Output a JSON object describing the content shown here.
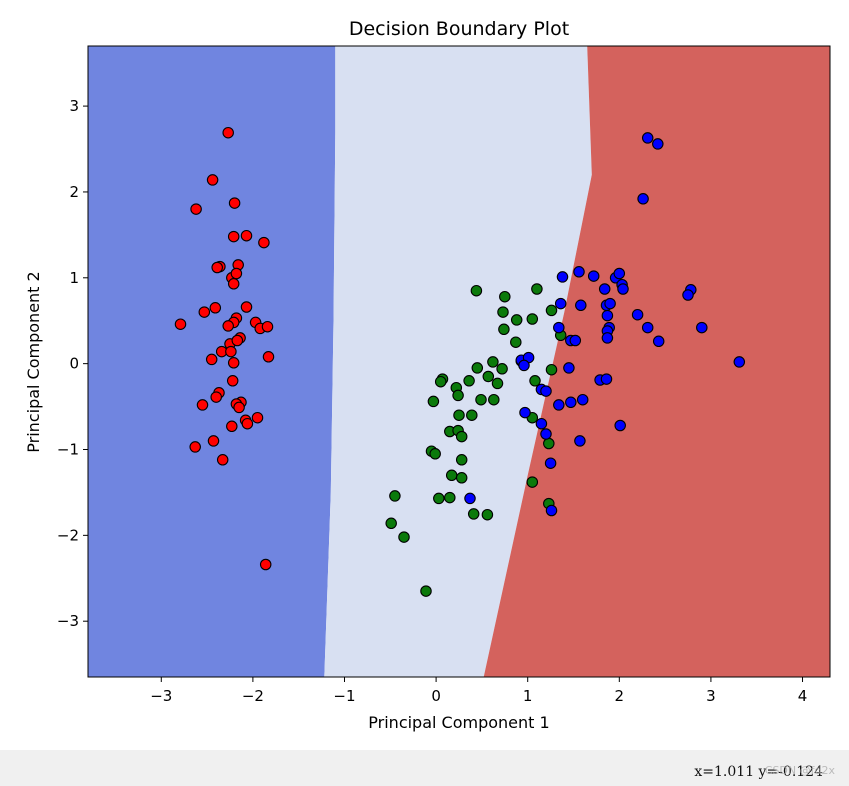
{
  "chart_data": {
    "type": "scatter",
    "title": "Decision Boundary Plot",
    "xlabel": "Principal Component 1",
    "ylabel": "Principal Component 2",
    "xlim": [
      -3.8,
      4.3
    ],
    "ylim": [
      -3.65,
      3.7
    ],
    "xticks": [
      -3,
      -2,
      -1,
      0,
      1,
      2,
      3,
      4
    ],
    "yticks": [
      -3,
      -2,
      -1,
      0,
      1,
      2,
      3
    ],
    "regions": [
      {
        "name": "class-0-region",
        "color": "#7085e0"
      },
      {
        "name": "class-1-region",
        "color": "#d8e0f2"
      },
      {
        "name": "class-2-region",
        "color": "#d4625d"
      }
    ],
    "boundaries": [
      {
        "name": "boundary-0-1",
        "points": [
          [
            -1.22,
            -3.65
          ],
          [
            -1.15,
            -1.5
          ],
          [
            -1.12,
            0.5
          ],
          [
            -1.1,
            2.7
          ],
          [
            -1.1,
            3.7
          ]
        ]
      },
      {
        "name": "boundary-1-2",
        "points": [
          [
            0.52,
            -3.65
          ],
          [
            1.0,
            -1.3
          ],
          [
            1.4,
            0.6
          ],
          [
            1.7,
            2.2
          ],
          [
            1.65,
            3.7
          ]
        ]
      }
    ],
    "series": [
      {
        "name": "class-0",
        "color": "#ff0000",
        "points": [
          [
            -2.27,
            2.69
          ],
          [
            -2.44,
            2.14
          ],
          [
            -2.62,
            1.8
          ],
          [
            -2.2,
            1.87
          ],
          [
            -2.21,
            1.48
          ],
          [
            -2.07,
            1.49
          ],
          [
            -1.88,
            1.41
          ],
          [
            -2.16,
            1.15
          ],
          [
            -2.36,
            1.13
          ],
          [
            -2.39,
            1.12
          ],
          [
            -2.23,
            1.0
          ],
          [
            -2.18,
            1.05
          ],
          [
            -2.21,
            0.93
          ],
          [
            -2.07,
            0.66
          ],
          [
            -2.41,
            0.65
          ],
          [
            -2.53,
            0.6
          ],
          [
            -2.18,
            0.53
          ],
          [
            -2.79,
            0.46
          ],
          [
            -1.97,
            0.48
          ],
          [
            -1.92,
            0.41
          ],
          [
            -1.84,
            0.43
          ],
          [
            -2.21,
            0.48
          ],
          [
            -2.27,
            0.44
          ],
          [
            -2.25,
            0.23
          ],
          [
            -2.14,
            0.3
          ],
          [
            -2.17,
            0.27
          ],
          [
            -2.34,
            0.14
          ],
          [
            -2.24,
            0.14
          ],
          [
            -2.45,
            0.05
          ],
          [
            -2.21,
            0.01
          ],
          [
            -1.83,
            0.08
          ],
          [
            -2.22,
            -0.2
          ],
          [
            -2.37,
            -0.34
          ],
          [
            -2.4,
            -0.39
          ],
          [
            -2.13,
            -0.45
          ],
          [
            -2.18,
            -0.47
          ],
          [
            -2.15,
            -0.51
          ],
          [
            -2.55,
            -0.48
          ],
          [
            -1.95,
            -0.63
          ],
          [
            -2.08,
            -0.66
          ],
          [
            -2.06,
            -0.7
          ],
          [
            -2.23,
            -0.73
          ],
          [
            -2.43,
            -0.9
          ],
          [
            -2.63,
            -0.97
          ],
          [
            -2.33,
            -1.12
          ],
          [
            -1.86,
            -2.34
          ]
        ]
      },
      {
        "name": "class-1",
        "color": "#0b7a0b",
        "points": [
          [
            0.44,
            0.85
          ],
          [
            1.1,
            0.87
          ],
          [
            0.75,
            0.78
          ],
          [
            1.26,
            0.62
          ],
          [
            0.73,
            0.6
          ],
          [
            0.88,
            0.51
          ],
          [
            1.05,
            0.52
          ],
          [
            0.74,
            0.4
          ],
          [
            1.36,
            0.33
          ],
          [
            0.87,
            0.25
          ],
          [
            0.62,
            0.02
          ],
          [
            0.45,
            -0.05
          ],
          [
            0.72,
            -0.06
          ],
          [
            0.93,
            0.03
          ],
          [
            1.26,
            -0.07
          ],
          [
            0.57,
            -0.15
          ],
          [
            0.36,
            -0.2
          ],
          [
            0.67,
            -0.23
          ],
          [
            0.07,
            -0.18
          ],
          [
            0.05,
            -0.21
          ],
          [
            0.22,
            -0.28
          ],
          [
            0.24,
            -0.37
          ],
          [
            1.08,
            -0.2
          ],
          [
            0.49,
            -0.42
          ],
          [
            0.63,
            -0.42
          ],
          [
            -0.03,
            -0.44
          ],
          [
            0.25,
            -0.6
          ],
          [
            0.39,
            -0.6
          ],
          [
            1.05,
            -0.63
          ],
          [
            0.15,
            -0.79
          ],
          [
            0.24,
            -0.78
          ],
          [
            0.28,
            -0.85
          ],
          [
            1.23,
            -0.93
          ],
          [
            -0.05,
            -1.02
          ],
          [
            -0.01,
            -1.05
          ],
          [
            0.28,
            -1.12
          ],
          [
            0.17,
            -1.3
          ],
          [
            0.28,
            -1.33
          ],
          [
            1.05,
            -1.38
          ],
          [
            -0.45,
            -1.54
          ],
          [
            0.03,
            -1.57
          ],
          [
            0.15,
            -1.56
          ],
          [
            0.41,
            -1.75
          ],
          [
            0.56,
            -1.76
          ],
          [
            1.23,
            -1.63
          ],
          [
            -0.49,
            -1.86
          ],
          [
            -0.35,
            -2.02
          ],
          [
            -0.11,
            -2.65
          ]
        ]
      },
      {
        "name": "class-2",
        "color": "#0000ff",
        "points": [
          [
            2.31,
            2.63
          ],
          [
            2.42,
            2.56
          ],
          [
            2.26,
            1.92
          ],
          [
            1.38,
            1.01
          ],
          [
            1.56,
            1.07
          ],
          [
            1.72,
            1.02
          ],
          [
            1.96,
            1.0
          ],
          [
            2.0,
            1.05
          ],
          [
            2.03,
            0.92
          ],
          [
            2.04,
            0.87
          ],
          [
            1.84,
            0.87
          ],
          [
            2.78,
            0.86
          ],
          [
            2.75,
            0.8
          ],
          [
            1.36,
            0.7
          ],
          [
            1.58,
            0.68
          ],
          [
            1.86,
            0.68
          ],
          [
            1.9,
            0.7
          ],
          [
            2.2,
            0.57
          ],
          [
            1.87,
            0.56
          ],
          [
            2.31,
            0.42
          ],
          [
            2.9,
            0.42
          ],
          [
            1.34,
            0.42
          ],
          [
            1.89,
            0.42
          ],
          [
            1.87,
            0.38
          ],
          [
            1.47,
            0.27
          ],
          [
            1.52,
            0.27
          ],
          [
            1.87,
            0.3
          ],
          [
            2.43,
            0.26
          ],
          [
            0.93,
            0.04
          ],
          [
            1.01,
            0.07
          ],
          [
            0.96,
            -0.02
          ],
          [
            3.31,
            0.02
          ],
          [
            1.45,
            -0.05
          ],
          [
            1.79,
            -0.19
          ],
          [
            1.86,
            -0.18
          ],
          [
            1.15,
            -0.3
          ],
          [
            1.2,
            -0.32
          ],
          [
            1.6,
            -0.42
          ],
          [
            1.47,
            -0.45
          ],
          [
            1.34,
            -0.48
          ],
          [
            0.97,
            -0.57
          ],
          [
            1.15,
            -0.7
          ],
          [
            1.2,
            -0.82
          ],
          [
            1.57,
            -0.9
          ],
          [
            2.01,
            -0.72
          ],
          [
            1.25,
            -1.16
          ],
          [
            0.37,
            -1.57
          ],
          [
            1.26,
            -1.71
          ]
        ]
      }
    ]
  },
  "status": {
    "coordinates": "x=1.011 y=-0.124",
    "watermark": "CSDN @fd2x"
  }
}
